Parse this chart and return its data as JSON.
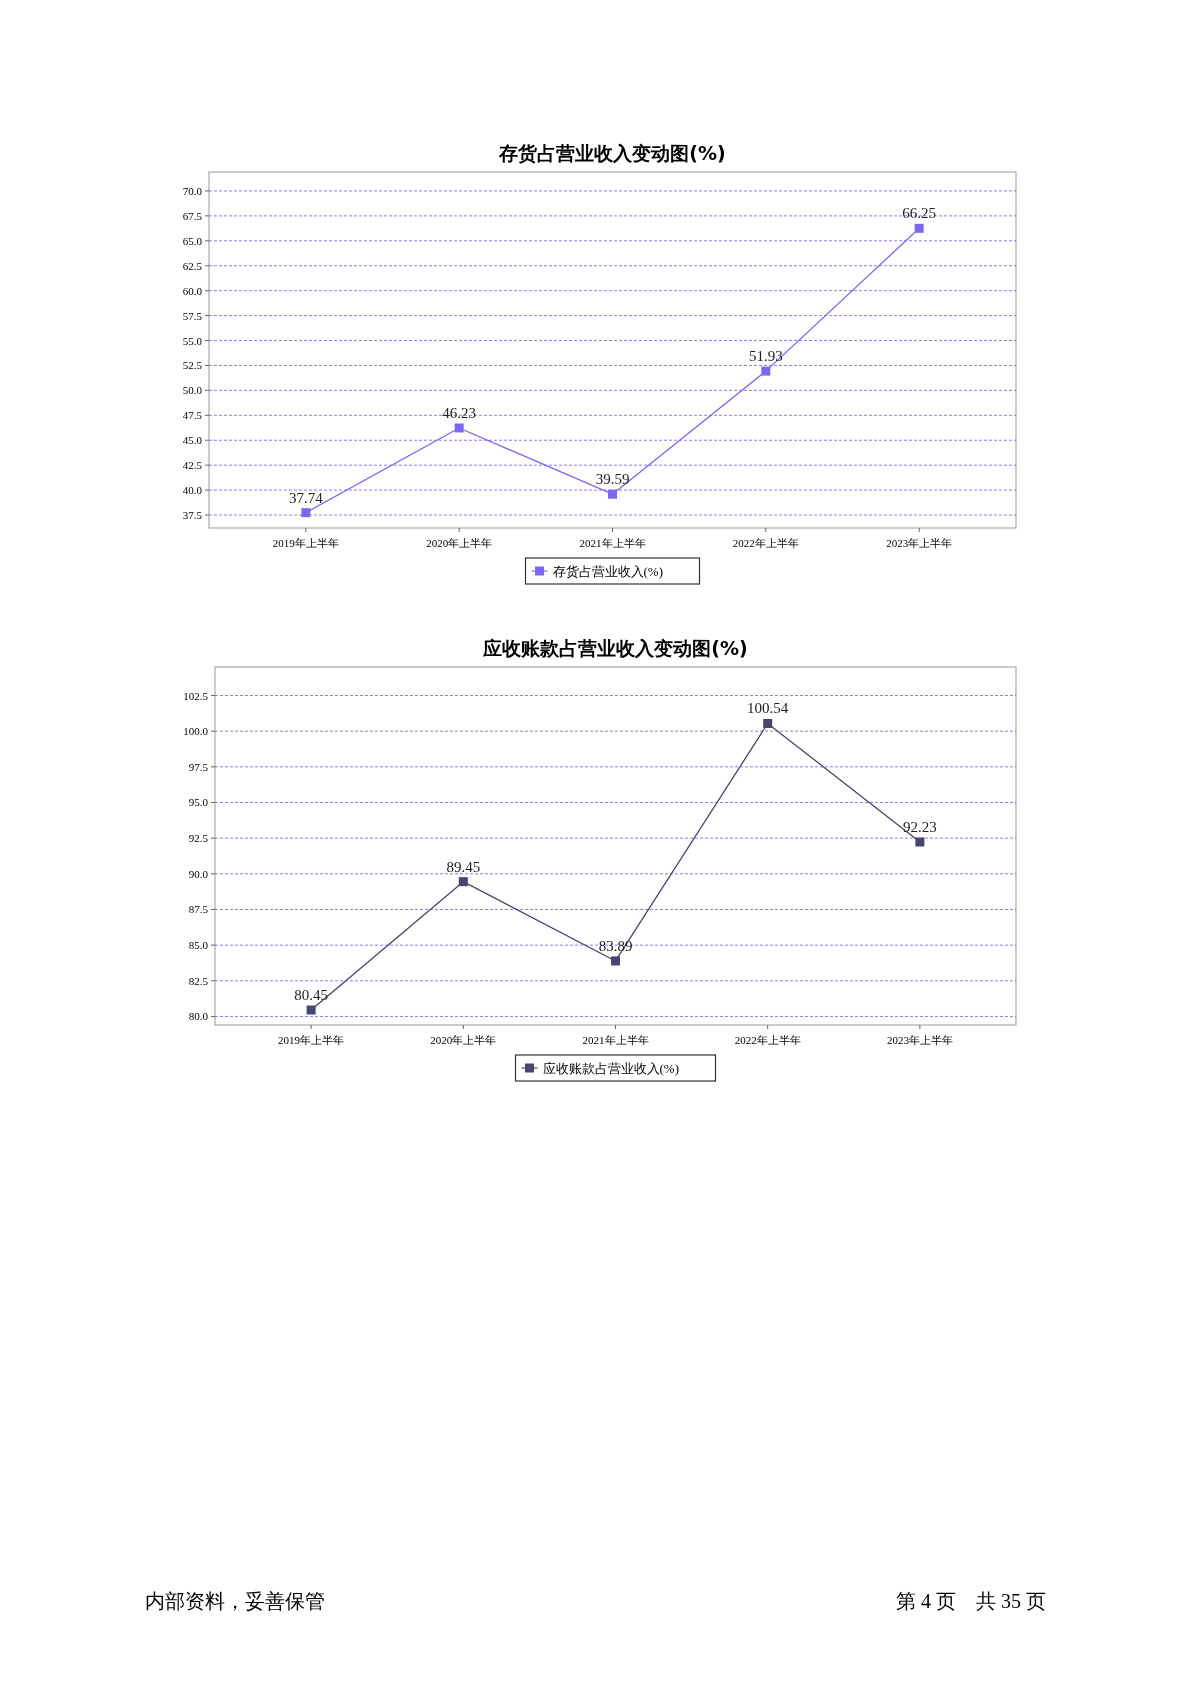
{
  "chart_data": [
    {
      "type": "line",
      "title": "存货占营业收入变动图(%)",
      "categories": [
        "2019年上半年",
        "2020年上半年",
        "2021年上半年",
        "2022年上半年",
        "2023年上半年"
      ],
      "series": [
        {
          "name": "存货占营业收入(%)",
          "color": "#7b68ee",
          "values": [
            37.74,
            46.23,
            39.59,
            51.93,
            66.25
          ]
        }
      ],
      "ylim": [
        36.2,
        71.9
      ],
      "yticks": [
        {
          "value": 37.5,
          "label": "37.5"
        },
        {
          "value": 40,
          "label": "40.0"
        },
        {
          "value": 42.5,
          "label": "42.5"
        },
        {
          "value": 45,
          "label": "45.0"
        },
        {
          "value": 47.5,
          "label": "47.5"
        },
        {
          "value": 50,
          "label": "50.0"
        },
        {
          "value": 52.5,
          "label": "52.5"
        },
        {
          "value": 55,
          "label": "55.0"
        },
        {
          "value": 57.5,
          "label": "57.5"
        },
        {
          "value": 60,
          "label": "60.0"
        },
        {
          "value": 62.5,
          "label": "62.5"
        },
        {
          "value": 65,
          "label": "65.0"
        },
        {
          "value": 67.5,
          "label": "67.5"
        },
        {
          "value": 70,
          "label": "70.0"
        }
      ],
      "grid": "y",
      "legend": "bottom",
      "marker": "square",
      "data_labels": true
    },
    {
      "type": "line",
      "title": "应收账款占营业收入变动图(%)",
      "categories": [
        "2019年上半年",
        "2020年上半年",
        "2021年上半年",
        "2022年上半年",
        "2023年上半年"
      ],
      "series": [
        {
          "name": "应收账款占营业收入(%)",
          "color": "#46466e",
          "values": [
            80.45,
            89.45,
            83.89,
            100.54,
            92.23
          ]
        }
      ],
      "ylim": [
        79.4,
        104.5
      ],
      "yticks": [
        {
          "value": 80,
          "label": "80.0"
        },
        {
          "value": 82.5,
          "label": "82.5"
        },
        {
          "value": 85,
          "label": "85.0"
        },
        {
          "value": 87.5,
          "label": "87.5"
        },
        {
          "value": 90,
          "label": "90.0"
        },
        {
          "value": 92.5,
          "label": "92.5"
        },
        {
          "value": 95,
          "label": "95.0"
        },
        {
          "value": 97.5,
          "label": "97.5"
        },
        {
          "value": 100,
          "label": "100.0"
        },
        {
          "value": 102.5,
          "label": "102.5"
        }
      ],
      "grid": "y",
      "legend": "bottom",
      "marker": "square",
      "data_labels": true,
      "annotations": [
        "内部资料，妥善保管",
        "第 4 页　共 35 页"
      ]
    }
  ]
}
